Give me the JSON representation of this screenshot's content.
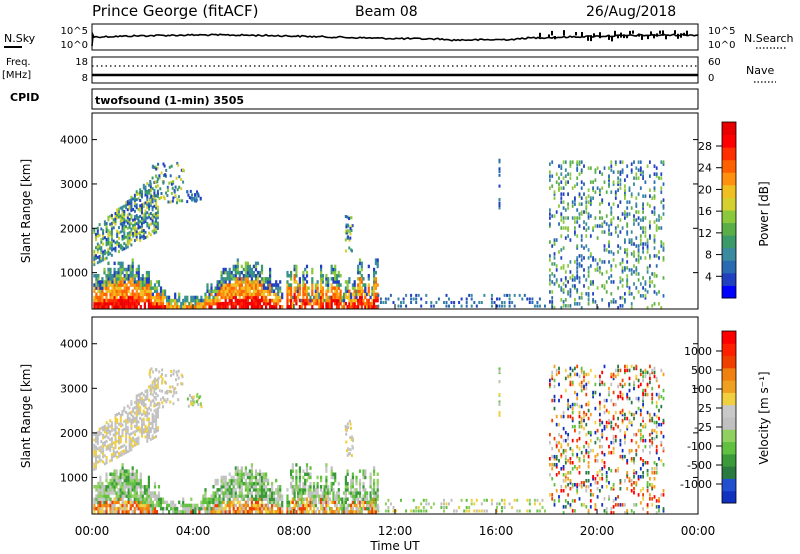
{
  "header": {
    "title": "Prince George (fitACF)",
    "beam": "Beam 08",
    "date": "26/Aug/2018"
  },
  "noise_panel": {
    "left_label": "N.Sky",
    "left_ticks": [
      "10^5",
      "10^0"
    ],
    "right_label": "N.Search",
    "right_ticks": [
      "10^5",
      "10^0"
    ]
  },
  "freq_panel": {
    "left_label_1": "Freq.",
    "left_label_2": "[MHz]",
    "left_ticks": [
      "18",
      "8"
    ],
    "right_label": "Nave",
    "right_ticks": [
      "60",
      "0"
    ]
  },
  "cpid_panel": {
    "label": "CPID",
    "program": "twofsound (1-min) 3505"
  },
  "chart_data": [
    {
      "type": "heatmap",
      "name": "power",
      "ylabel": "Slant Range [km]",
      "yticks": [
        "4000",
        "3000",
        "2000",
        "1000"
      ],
      "ytick_values": [
        4000,
        3000,
        2000,
        1000
      ],
      "ylim": [
        180,
        4600
      ],
      "xlim_hours": [
        0,
        24
      ],
      "colorbar_label": "Power [dB]",
      "colorbar_ticks": [
        "28",
        "24",
        "20",
        "16",
        "12",
        "8",
        "4"
      ],
      "colorbar_colors": [
        "#0000ff",
        "#2040c0",
        "#2a6ab0",
        "#3a8aa0",
        "#3a9a6a",
        "#5aae48",
        "#8cc83c",
        "#d4d030",
        "#f0c020",
        "#ff9010",
        "#ff6000",
        "#ff3000",
        "#ff0000",
        "#e80000"
      ]
    },
    {
      "type": "heatmap",
      "name": "velocity",
      "ylabel": "Slant Range [km]",
      "yticks": [
        "4000",
        "3000",
        "2000",
        "1000"
      ],
      "ytick_values": [
        4000,
        3000,
        2000,
        1000
      ],
      "ylim": [
        180,
        4600
      ],
      "xlim_hours": [
        0,
        24
      ],
      "colorbar_label": "Velocity [m s⁻¹]",
      "colorbar_ticks": [
        "1000",
        "500",
        "100",
        "25",
        "-25",
        "-100",
        "-500",
        "-1000"
      ],
      "colorbar_colors": [
        "#1030c0",
        "#2050d0",
        "#2a7a40",
        "#3a9a3a",
        "#60c040",
        "#90d060",
        "#c0c0c0",
        "#c8c8c8",
        "#f0d040",
        "#f0a020",
        "#f08010",
        "#f04000",
        "#ff2000",
        "#ff0000"
      ]
    }
  ],
  "xaxis": {
    "ticks": [
      "00:00",
      "04:00",
      "08:00",
      "12:00",
      "16:00",
      "20:00",
      "00:00"
    ],
    "label": "Time UT"
  }
}
